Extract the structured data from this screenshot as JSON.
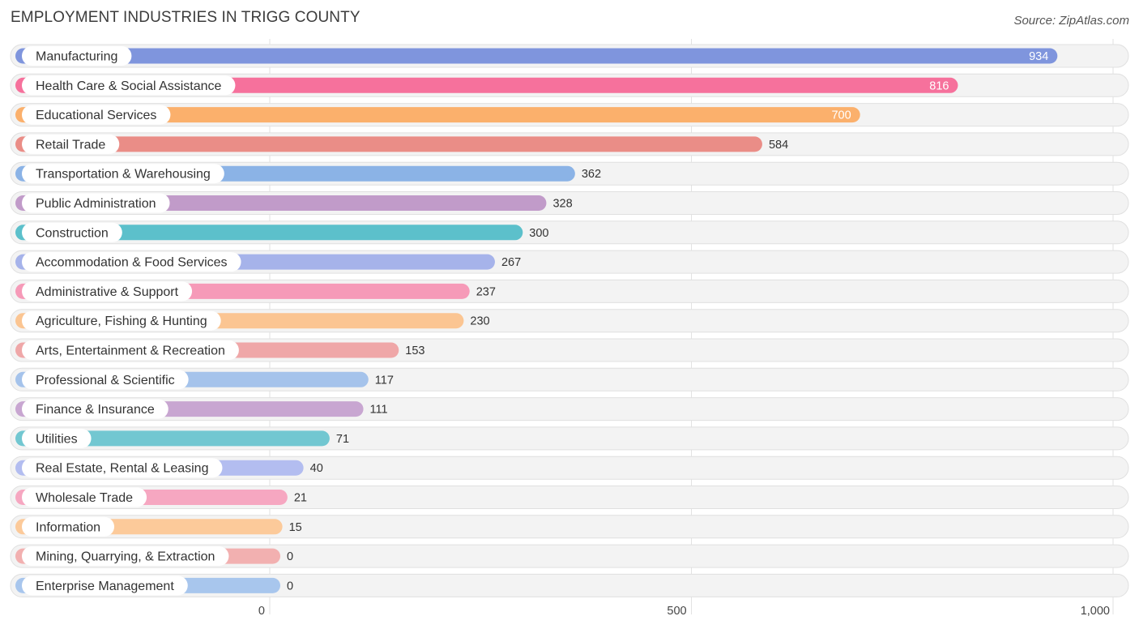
{
  "chart_data": {
    "type": "bar",
    "orientation": "horizontal",
    "title": "EMPLOYMENT INDUSTRIES IN TRIGG COUNTY",
    "source": "Source: ZipAtlas.com",
    "xlim": [
      0,
      1000
    ],
    "ticks": [
      {
        "value": 0,
        "label": "0"
      },
      {
        "value": 500,
        "label": "500"
      },
      {
        "value": 1000,
        "label": "1,000"
      }
    ],
    "categories": [
      "Manufacturing",
      "Health Care & Social Assistance",
      "Educational Services",
      "Retail Trade",
      "Transportation & Warehousing",
      "Public Administration",
      "Construction",
      "Accommodation & Food Services",
      "Administrative & Support",
      "Agriculture, Fishing & Hunting",
      "Arts, Entertainment & Recreation",
      "Professional & Scientific",
      "Finance & Insurance",
      "Utilities",
      "Real Estate, Rental & Leasing",
      "Wholesale Trade",
      "Information",
      "Mining, Quarrying, & Extraction",
      "Enterprise Management"
    ],
    "values": [
      934,
      816,
      700,
      584,
      362,
      328,
      300,
      267,
      237,
      230,
      153,
      117,
      111,
      71,
      40,
      21,
      15,
      0,
      0
    ],
    "value_labels": [
      "934",
      "816",
      "700",
      "584",
      "362",
      "328",
      "300",
      "267",
      "237",
      "230",
      "153",
      "117",
      "111",
      "71",
      "40",
      "21",
      "15",
      "0",
      "0"
    ],
    "colors": [
      "#7f95dd",
      "#f6719c",
      "#fbb06c",
      "#ea8d87",
      "#8bb3e6",
      "#c19bc9",
      "#5cc0cb",
      "#a6b3ea",
      "#f69ab8",
      "#fbc592",
      "#efa7a8",
      "#a5c3eb",
      "#c8a6d1",
      "#72c7d1",
      "#b3bdf0",
      "#f6a7c1",
      "#fcca9a",
      "#f2b0b0",
      "#a8c6ed"
    ]
  }
}
